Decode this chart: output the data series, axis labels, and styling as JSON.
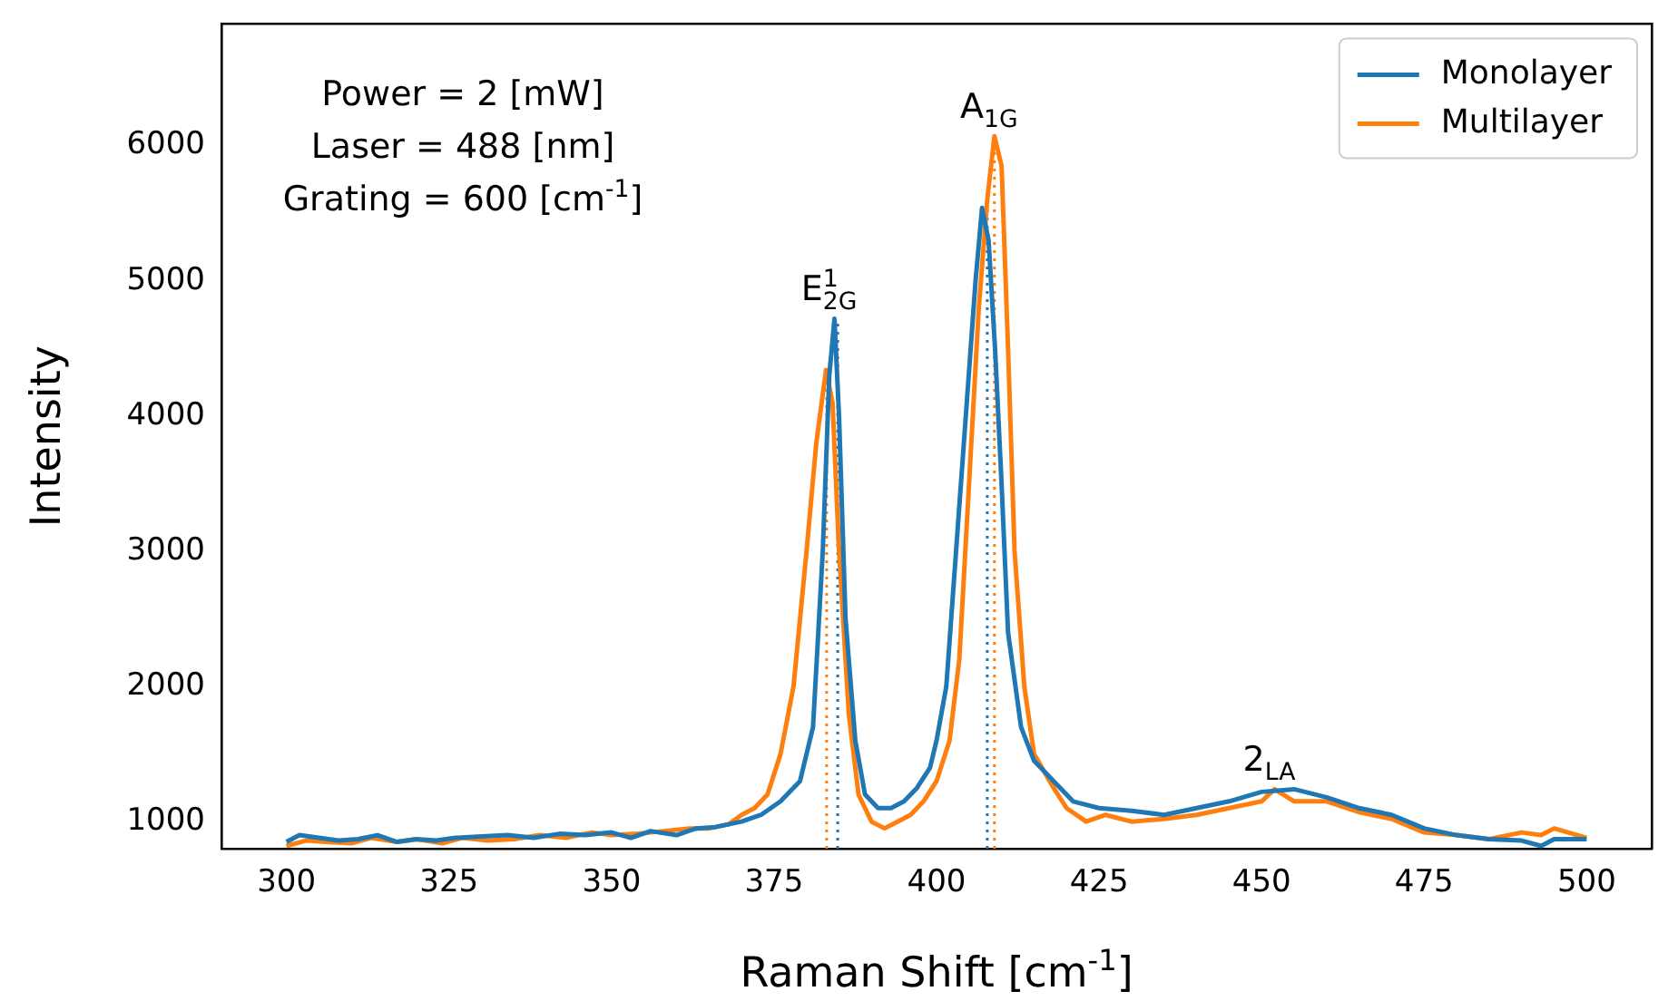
{
  "chart_data": {
    "type": "line",
    "xlabel": "Raman Shift [cm$^{-1}$]",
    "ylabel": "Intensity",
    "xlim": [
      290,
      510
    ],
    "xticks": [
      300,
      325,
      350,
      375,
      400,
      425,
      450,
      475,
      500
    ],
    "ylim": [
      800,
      6900
    ],
    "yticks": [
      1000,
      2000,
      3000,
      4000,
      5000,
      6000
    ],
    "grid": false,
    "legend": "top right",
    "marker": "none",
    "series": [
      {
        "name": "Monolayer",
        "color": "#1f77b4",
        "x": [
          300,
          302,
          305,
          308,
          311,
          314,
          317,
          320,
          323,
          326,
          330,
          334,
          338,
          342,
          346,
          350,
          353,
          356,
          360,
          363,
          366,
          370,
          373,
          376,
          379,
          381,
          382.5,
          383.5,
          384.3,
          385,
          386,
          387.5,
          389,
          391,
          393,
          395,
          397,
          399,
          400,
          401.5,
          403,
          404.5,
          406,
          407,
          408,
          409,
          410,
          411,
          413,
          415,
          418,
          421,
          425,
          430,
          435,
          440,
          445,
          450,
          455,
          460,
          465,
          470,
          475,
          480,
          485,
          490,
          493,
          495,
          500
        ],
        "values": [
          850,
          900,
          880,
          860,
          870,
          900,
          850,
          870,
          860,
          880,
          890,
          900,
          880,
          910,
          900,
          920,
          880,
          930,
          900,
          950,
          960,
          1000,
          1050,
          1150,
          1300,
          1700,
          3000,
          4300,
          4720,
          4000,
          2500,
          1600,
          1200,
          1100,
          1100,
          1150,
          1250,
          1400,
          1600,
          2000,
          3000,
          4000,
          5000,
          5540,
          5300,
          4500,
          3500,
          2400,
          1700,
          1450,
          1300,
          1150,
          1100,
          1080,
          1050,
          1100,
          1150,
          1220,
          1240,
          1180,
          1100,
          1050,
          950,
          900,
          870,
          860,
          820,
          870,
          870
        ]
      },
      {
        "name": "Multilayer",
        "color": "#ff7f0e",
        "x": [
          300,
          303,
          306,
          310,
          313,
          317,
          320,
          324,
          327,
          331,
          335,
          339,
          343,
          347,
          350,
          354,
          358,
          362,
          365,
          368,
          370,
          372,
          374,
          376,
          378,
          380,
          381.5,
          383,
          384,
          385,
          386.5,
          388,
          390,
          392,
          394,
          396,
          398,
          400,
          402,
          403.5,
          405,
          406.5,
          407.8,
          408.9,
          410,
          411,
          412,
          413.5,
          415,
          418,
          420,
          423,
          426,
          430,
          435,
          440,
          445,
          450,
          452,
          455,
          460,
          465,
          470,
          475,
          480,
          485,
          490,
          493,
          495,
          500
        ],
        "values": [
          820,
          860,
          850,
          840,
          880,
          850,
          870,
          840,
          880,
          860,
          870,
          900,
          880,
          920,
          900,
          910,
          930,
          950,
          950,
          980,
          1050,
          1100,
          1200,
          1500,
          2000,
          3000,
          3800,
          4340,
          4100,
          3000,
          1800,
          1200,
          1000,
          950,
          1000,
          1050,
          1150,
          1300,
          1600,
          2200,
          3500,
          4800,
          5600,
          6070,
          5850,
          4500,
          3000,
          2000,
          1500,
          1250,
          1100,
          1000,
          1050,
          1000,
          1020,
          1050,
          1100,
          1150,
          1240,
          1150,
          1150,
          1070,
          1020,
          920,
          900,
          870,
          920,
          900,
          950,
          880
        ]
      },
      {
        "color": "#1f77b4",
        "line_style": "dotted",
        "x": [
          384.8,
          384.8
        ],
        "values": [
          800,
          4720
        ]
      },
      {
        "color": "#ff7f0e",
        "line_style": "dotted",
        "x": [
          383.1,
          383.1
        ],
        "values": [
          800,
          4340
        ]
      },
      {
        "color": "#1f77b4",
        "line_style": "dotted",
        "x": [
          407.8,
          407.8
        ],
        "values": [
          800,
          5540
        ]
      },
      {
        "color": "#ff7f0e",
        "line_style": "dotted",
        "x": [
          408.9,
          408.9
        ],
        "values": [
          800,
          6070
        ]
      }
    ],
    "annotations": [
      "Power = 2 [mW]",
      "Laser = 488 [nm]",
      "Grating = 600 [cm$^{-1}$]",
      {
        "text": "E$^{1}$$_{2G}$",
        "x": 384.3,
        "y": 4720
      },
      {
        "text": "A$_{1G}$",
        "x": 408.9,
        "y": 6070
      },
      {
        "text": "2$_{LA}$",
        "x": 452,
        "y": 1240
      }
    ]
  }
}
